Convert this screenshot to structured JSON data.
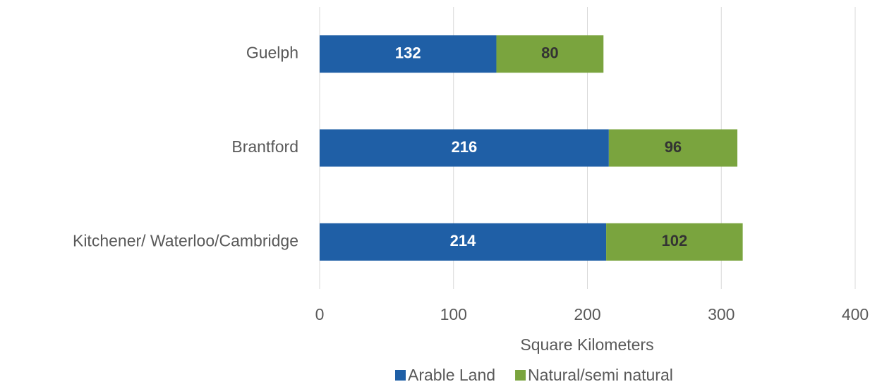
{
  "chart_data": {
    "type": "bar",
    "orientation": "horizontal",
    "stacked": true,
    "x_label": "Square Kilometers",
    "categories": [
      "Guelph",
      "Brantford",
      "Kitchener/ Waterloo/Cambridge"
    ],
    "series": [
      {
        "name": "Arable Land",
        "color": "#1f5fa6",
        "label_color": "#ffffff",
        "values": [
          132,
          216,
          214
        ]
      },
      {
        "name": "Natural/semi natural",
        "color": "#7aa43e",
        "label_color": "#333333",
        "values": [
          80,
          96,
          102
        ]
      }
    ],
    "xlim": [
      0,
      400
    ],
    "xticks": [
      0,
      100,
      200,
      300,
      400
    ],
    "grid": true,
    "legend": "bottom"
  }
}
